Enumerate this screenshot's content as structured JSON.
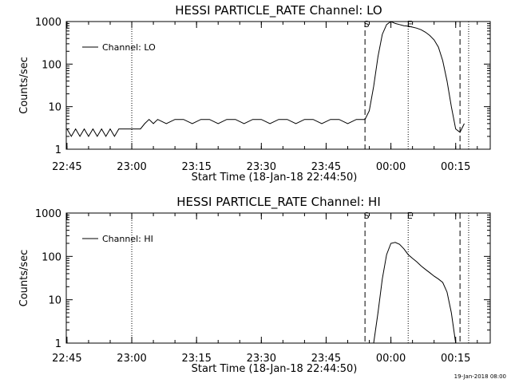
{
  "chart_data": [
    {
      "type": "line",
      "title": "HESSI PARTICLE_RATE Channel: LO",
      "xlabel": "Start Time (18-Jan-18 22:44:50)",
      "ylabel": "Counts/sec",
      "y_scale": "log",
      "ylim": [
        1,
        1000
      ],
      "y_ticks": [
        "1",
        "10",
        "100",
        "1000"
      ],
      "x_ticks": [
        "22:45",
        "23:00",
        "23:15",
        "23:30",
        "23:45",
        "00:00",
        "00:15"
      ],
      "legend": {
        "placement": "top-left",
        "entries": [
          "Channel: LO"
        ]
      },
      "markers": [
        {
          "label": "S",
          "style": "dashed",
          "time": "23:54"
        },
        {
          "label": "E",
          "style": "dotted",
          "time": "00:04"
        },
        {
          "label": "",
          "style": "dashed",
          "time": "00:16"
        },
        {
          "label": "",
          "style": "dotted",
          "time": "00:18"
        },
        {
          "label": "",
          "style": "dotted",
          "time": "23:00"
        }
      ],
      "series": [
        {
          "name": "Channel: LO",
          "x": [
            "22:45",
            "22:46",
            "22:47",
            "22:48",
            "22:49",
            "22:50",
            "22:51",
            "22:52",
            "22:53",
            "22:54",
            "22:55",
            "22:56",
            "22:57",
            "22:58",
            "22:59",
            "23:00",
            "23:01",
            "23:02",
            "23:03",
            "23:04",
            "23:05",
            "23:06",
            "23:08",
            "23:10",
            "23:12",
            "23:14",
            "23:16",
            "23:18",
            "23:20",
            "23:22",
            "23:24",
            "23:26",
            "23:28",
            "23:30",
            "23:32",
            "23:34",
            "23:36",
            "23:38",
            "23:40",
            "23:42",
            "23:44",
            "23:46",
            "23:48",
            "23:50",
            "23:52",
            "23:54",
            "23:55",
            "23:56",
            "23:57",
            "23:58",
            "23:59",
            "00:00",
            "00:01",
            "00:02",
            "00:03",
            "00:04",
            "00:05",
            "00:06",
            "00:07",
            "00:08",
            "00:09",
            "00:10",
            "00:11",
            "00:12",
            "00:13",
            "00:14",
            "00:15",
            "00:16",
            "00:17"
          ],
          "values": [
            3,
            2,
            3,
            2,
            3,
            2,
            3,
            2,
            3,
            2,
            3,
            2,
            3,
            3,
            3,
            3,
            3,
            3,
            4,
            5,
            4,
            5,
            4,
            5,
            5,
            4,
            5,
            5,
            4,
            5,
            5,
            4,
            5,
            5,
            4,
            5,
            5,
            4,
            5,
            5,
            4,
            5,
            5,
            4,
            5,
            5,
            8,
            30,
            150,
            500,
            850,
            1000,
            900,
            850,
            800,
            780,
            740,
            700,
            640,
            560,
            470,
            370,
            250,
            120,
            40,
            10,
            3,
            2.5,
            4
          ]
        }
      ]
    },
    {
      "type": "line",
      "title": "HESSI PARTICLE_RATE Channel: HI",
      "xlabel": "Start Time (18-Jan-18 22:44:50)",
      "ylabel": "Counts/sec",
      "y_scale": "log",
      "ylim": [
        1,
        1000
      ],
      "y_ticks": [
        "1",
        "10",
        "100",
        "1000"
      ],
      "x_ticks": [
        "22:45",
        "23:00",
        "23:15",
        "23:30",
        "23:45",
        "00:00",
        "00:15"
      ],
      "legend": {
        "placement": "top-left",
        "entries": [
          "Channel: HI"
        ]
      },
      "markers": [
        {
          "label": "S",
          "style": "dashed",
          "time": "23:54"
        },
        {
          "label": "E",
          "style": "dotted",
          "time": "00:04"
        },
        {
          "label": "",
          "style": "dashed",
          "time": "00:16"
        },
        {
          "label": "",
          "style": "dotted",
          "time": "00:18"
        },
        {
          "label": "",
          "style": "dotted",
          "time": "23:00"
        }
      ],
      "series": [
        {
          "name": "Channel: HI",
          "x": [
            "23:56",
            "23:57",
            "23:58",
            "23:59",
            "00:00",
            "00:01",
            "00:02",
            "00:03",
            "00:04",
            "00:05",
            "00:06",
            "00:07",
            "00:08",
            "00:09",
            "00:10",
            "00:11",
            "00:12",
            "00:13",
            "00:14",
            "00:15"
          ],
          "values": [
            1,
            5,
            30,
            110,
            200,
            210,
            190,
            150,
            110,
            90,
            75,
            60,
            50,
            42,
            35,
            30,
            25,
            15,
            5,
            1
          ]
        }
      ]
    }
  ],
  "footer": {
    "timestamp": "19-Jan-2018 08:00"
  }
}
